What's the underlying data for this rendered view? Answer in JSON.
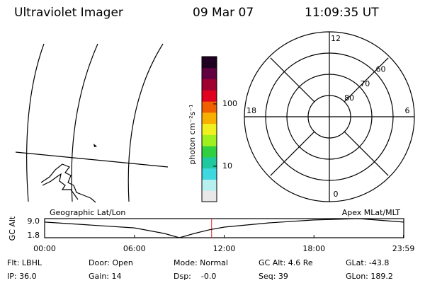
{
  "header": {
    "title": "Ultraviolet Imager",
    "date": "09 Mar 07",
    "time": "11:09:35 UT"
  },
  "map": {
    "label": "Geographic Lat/Lon"
  },
  "colorbar": {
    "label": "photon cm⁻²s⁻¹",
    "scale": "log",
    "clim": [
      2.7,
      575
    ],
    "ticks": [
      10,
      100
    ],
    "colors": [
      "#e8e8e8",
      "#b8f0f0",
      "#40d8e0",
      "#20c8a0",
      "#30d040",
      "#a0f020",
      "#f0f020",
      "#f8b000",
      "#f06000",
      "#e00020",
      "#a00030",
      "#600040",
      "#200020"
    ]
  },
  "polar": {
    "mlt_labels": [
      12,
      18,
      6,
      0
    ],
    "lat_lim": [
      50,
      90
    ],
    "lat_rings": [
      60,
      70,
      80
    ]
  },
  "chart_data": {
    "type": "line",
    "ylabel": "GC Alt",
    "left_label": "Geographic Lat/Lon",
    "right_label": "Apex MLat/MLT",
    "x": [
      0,
      3,
      6,
      8,
      9,
      10,
      11,
      12,
      15,
      18,
      21,
      23.98
    ],
    "values": [
      7.7,
      6.6,
      5.5,
      3.4,
      1.8,
      3.4,
      4.8,
      5.8,
      7.4,
      8.5,
      9.0,
      7.7
    ],
    "color": "#000000",
    "xlim": [
      0,
      24
    ],
    "xticks": [
      {
        "value": 0,
        "label": "00:00"
      },
      {
        "value": 6,
        "label": "06:00"
      },
      {
        "value": 12,
        "label": "12:00"
      },
      {
        "value": 18,
        "label": "18:00"
      },
      {
        "value": 23.98,
        "label": "23:59"
      }
    ],
    "ylim": [
      1.8,
      9.0
    ],
    "yticks": [
      {
        "value": 9.0,
        "label": "9.0"
      },
      1.8
    ],
    "time_marker": 11.16,
    "time_marker_color": "#e02020"
  },
  "status": [
    "Flt: LBHL",
    "IP: 36.0",
    "Door: Open",
    "Gain: 14",
    "Mode: Normal",
    "Dsp:    -0.0",
    "GC Alt: 4.6 Re",
    "Seq: 39",
    "GLat: -43.8",
    "GLon: 189.2"
  ]
}
